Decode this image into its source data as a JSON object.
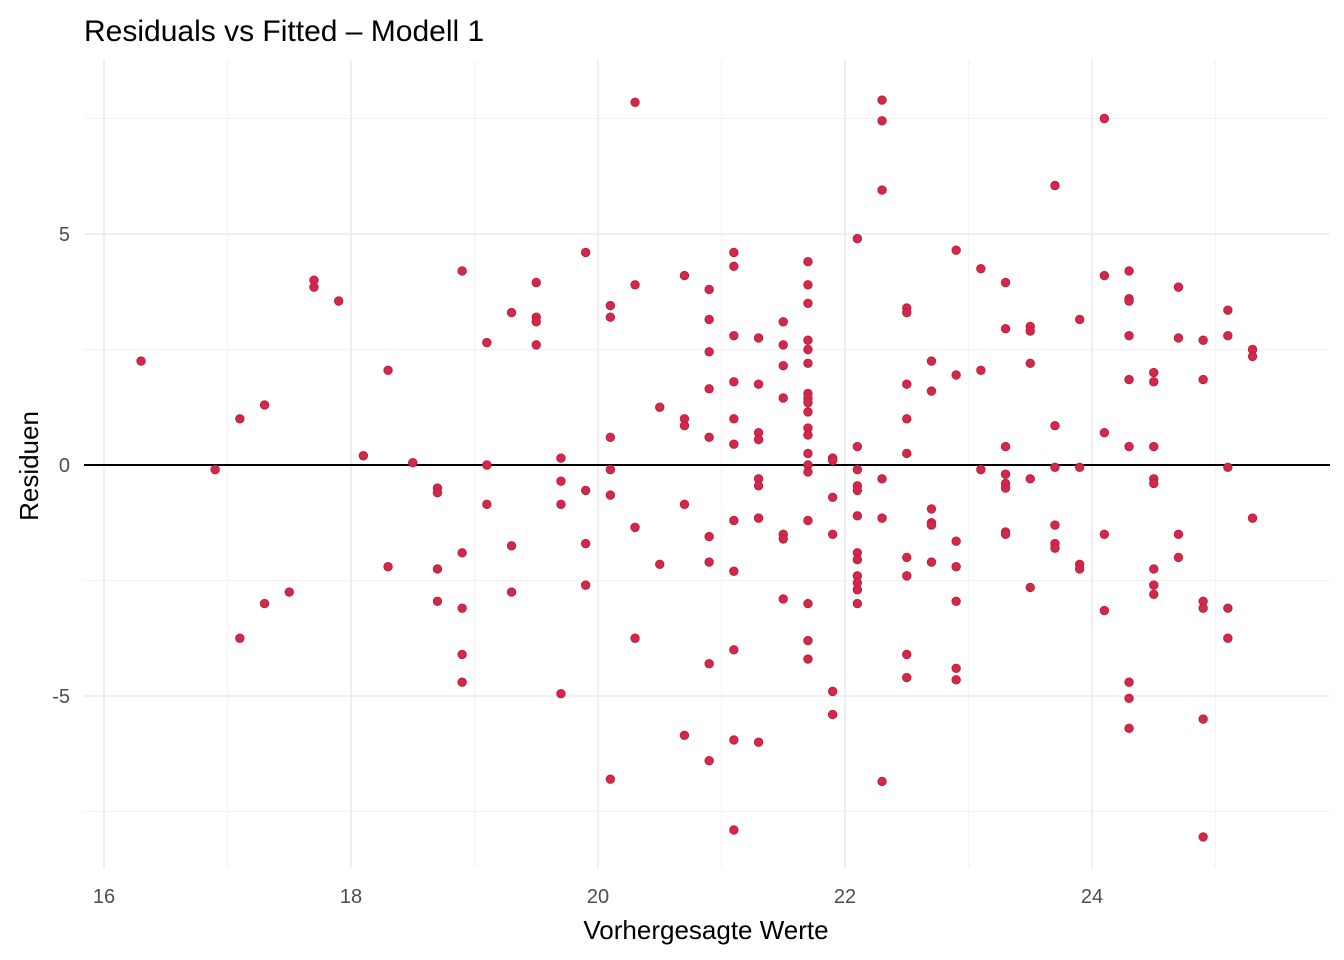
{
  "chart_data": {
    "type": "scatter",
    "title": "Residuals vs Fitted – Modell 1",
    "xlabel": "Vorhergesagte Werte",
    "ylabel": "Residuen",
    "xlim": [
      15.8,
      25.8
    ],
    "ylim": [
      -8.8,
      8.8
    ],
    "x_ticks": [
      16,
      18,
      20,
      22,
      24
    ],
    "x_tick_labels": [
      "16",
      "18",
      "20",
      "22",
      "24"
    ],
    "y_ticks": [
      -5,
      0,
      5
    ],
    "y_tick_labels": [
      "-5",
      "0",
      "5"
    ],
    "reference_line": {
      "y": 0,
      "color": "#000000"
    },
    "grid": true,
    "point_color": "#d0294b",
    "points": [
      [
        16.3,
        2.25
      ],
      [
        16.9,
        -0.1
      ],
      [
        17.1,
        1.0
      ],
      [
        17.1,
        -3.75
      ],
      [
        17.3,
        1.3
      ],
      [
        17.3,
        -3.0
      ],
      [
        17.5,
        -2.75
      ],
      [
        17.7,
        4.0
      ],
      [
        17.7,
        3.85
      ],
      [
        17.9,
        3.55
      ],
      [
        18.1,
        0.2
      ],
      [
        18.3,
        2.05
      ],
      [
        18.3,
        -2.2
      ],
      [
        18.5,
        0.05
      ],
      [
        18.7,
        -0.5
      ],
      [
        18.7,
        -0.6
      ],
      [
        18.7,
        -2.25
      ],
      [
        18.7,
        -2.95
      ],
      [
        18.9,
        4.2
      ],
      [
        18.9,
        -1.9
      ],
      [
        18.9,
        -3.1
      ],
      [
        18.9,
        -4.1
      ],
      [
        18.9,
        -4.7
      ],
      [
        19.1,
        2.65
      ],
      [
        19.1,
        0.0
      ],
      [
        19.1,
        -0.85
      ],
      [
        19.3,
        3.3
      ],
      [
        19.3,
        -1.75
      ],
      [
        19.3,
        -2.75
      ],
      [
        19.5,
        3.95
      ],
      [
        19.5,
        3.2
      ],
      [
        19.5,
        3.1
      ],
      [
        19.5,
        2.6
      ],
      [
        19.7,
        0.15
      ],
      [
        19.7,
        -0.35
      ],
      [
        19.7,
        -0.85
      ],
      [
        19.7,
        -4.95
      ],
      [
        19.9,
        4.6
      ],
      [
        19.9,
        -0.55
      ],
      [
        19.9,
        -1.7
      ],
      [
        19.9,
        -2.6
      ],
      [
        20.1,
        3.45
      ],
      [
        20.1,
        3.2
      ],
      [
        20.1,
        0.6
      ],
      [
        20.1,
        -0.1
      ],
      [
        20.1,
        -0.65
      ],
      [
        20.1,
        -6.8
      ],
      [
        20.3,
        7.85
      ],
      [
        20.3,
        3.9
      ],
      [
        20.3,
        -1.35
      ],
      [
        20.3,
        -3.75
      ],
      [
        20.5,
        1.25
      ],
      [
        20.5,
        -2.15
      ],
      [
        20.7,
        4.1
      ],
      [
        20.7,
        1.0
      ],
      [
        20.7,
        0.85
      ],
      [
        20.7,
        -0.85
      ],
      [
        20.7,
        -5.85
      ],
      [
        20.9,
        3.8
      ],
      [
        20.9,
        3.15
      ],
      [
        20.9,
        2.45
      ],
      [
        20.9,
        1.65
      ],
      [
        20.9,
        0.6
      ],
      [
        20.9,
        -1.55
      ],
      [
        20.9,
        -2.1
      ],
      [
        20.9,
        -4.3
      ],
      [
        20.9,
        -6.4
      ],
      [
        21.1,
        4.6
      ],
      [
        21.1,
        4.3
      ],
      [
        21.1,
        2.8
      ],
      [
        21.1,
        1.8
      ],
      [
        21.1,
        1.0
      ],
      [
        21.1,
        0.45
      ],
      [
        21.1,
        -1.2
      ],
      [
        21.1,
        -2.3
      ],
      [
        21.1,
        -4.0
      ],
      [
        21.1,
        -5.95
      ],
      [
        21.1,
        -7.9
      ],
      [
        21.3,
        2.75
      ],
      [
        21.3,
        1.75
      ],
      [
        21.3,
        0.7
      ],
      [
        21.3,
        0.55
      ],
      [
        21.3,
        -0.3
      ],
      [
        21.3,
        -0.45
      ],
      [
        21.3,
        -1.15
      ],
      [
        21.3,
        -6.0
      ],
      [
        21.5,
        3.1
      ],
      [
        21.5,
        2.6
      ],
      [
        21.5,
        2.15
      ],
      [
        21.5,
        1.45
      ],
      [
        21.5,
        -1.5
      ],
      [
        21.5,
        -1.6
      ],
      [
        21.5,
        -2.9
      ],
      [
        21.7,
        4.4
      ],
      [
        21.7,
        3.9
      ],
      [
        21.7,
        3.5
      ],
      [
        21.7,
        2.7
      ],
      [
        21.7,
        2.5
      ],
      [
        21.7,
        2.2
      ],
      [
        21.7,
        1.55
      ],
      [
        21.7,
        1.45
      ],
      [
        21.7,
        1.35
      ],
      [
        21.7,
        1.15
      ],
      [
        21.7,
        0.8
      ],
      [
        21.7,
        0.65
      ],
      [
        21.7,
        0.25
      ],
      [
        21.7,
        0.0
      ],
      [
        21.7,
        -0.15
      ],
      [
        21.7,
        -1.2
      ],
      [
        21.7,
        -3.0
      ],
      [
        21.7,
        -3.8
      ],
      [
        21.7,
        -4.2
      ],
      [
        21.9,
        0.15
      ],
      [
        21.9,
        0.1
      ],
      [
        21.9,
        -0.7
      ],
      [
        21.9,
        -1.5
      ],
      [
        21.9,
        -4.9
      ],
      [
        21.9,
        -5.4
      ],
      [
        22.1,
        4.9
      ],
      [
        22.1,
        0.4
      ],
      [
        22.1,
        -0.1
      ],
      [
        22.1,
        -0.45
      ],
      [
        22.1,
        -0.55
      ],
      [
        22.1,
        -1.1
      ],
      [
        22.1,
        -1.9
      ],
      [
        22.1,
        -2.05
      ],
      [
        22.1,
        -2.4
      ],
      [
        22.1,
        -2.55
      ],
      [
        22.1,
        -2.7
      ],
      [
        22.1,
        -3.0
      ],
      [
        22.3,
        7.9
      ],
      [
        22.3,
        7.45
      ],
      [
        22.3,
        5.95
      ],
      [
        22.3,
        -0.3
      ],
      [
        22.3,
        -1.15
      ],
      [
        22.3,
        -6.85
      ],
      [
        22.5,
        3.4
      ],
      [
        22.5,
        3.3
      ],
      [
        22.5,
        1.75
      ],
      [
        22.5,
        1.0
      ],
      [
        22.5,
        0.25
      ],
      [
        22.5,
        -2.0
      ],
      [
        22.5,
        -2.4
      ],
      [
        22.5,
        -4.1
      ],
      [
        22.5,
        -4.6
      ],
      [
        22.7,
        2.25
      ],
      [
        22.7,
        1.6
      ],
      [
        22.7,
        -0.95
      ],
      [
        22.7,
        -1.25
      ],
      [
        22.7,
        -1.3
      ],
      [
        22.7,
        -2.1
      ],
      [
        22.9,
        4.65
      ],
      [
        22.9,
        1.95
      ],
      [
        22.9,
        -1.65
      ],
      [
        22.9,
        -2.2
      ],
      [
        22.9,
        -2.95
      ],
      [
        22.9,
        -4.4
      ],
      [
        22.9,
        -4.65
      ],
      [
        23.1,
        4.25
      ],
      [
        23.1,
        2.05
      ],
      [
        23.1,
        -0.1
      ],
      [
        23.3,
        3.95
      ],
      [
        23.3,
        2.95
      ],
      [
        23.3,
        0.4
      ],
      [
        23.3,
        -0.2
      ],
      [
        23.3,
        -0.4
      ],
      [
        23.3,
        -0.5
      ],
      [
        23.3,
        -1.45
      ],
      [
        23.3,
        -1.5
      ],
      [
        23.5,
        3.0
      ],
      [
        23.5,
        2.9
      ],
      [
        23.5,
        2.2
      ],
      [
        23.5,
        -0.3
      ],
      [
        23.5,
        -2.65
      ],
      [
        23.7,
        6.05
      ],
      [
        23.7,
        0.85
      ],
      [
        23.7,
        -0.05
      ],
      [
        23.7,
        -1.3
      ],
      [
        23.7,
        -1.7
      ],
      [
        23.7,
        -1.8
      ],
      [
        23.9,
        3.15
      ],
      [
        23.9,
        -0.05
      ],
      [
        23.9,
        -2.15
      ],
      [
        23.9,
        -2.25
      ],
      [
        24.1,
        7.5
      ],
      [
        24.1,
        4.1
      ],
      [
        24.1,
        0.7
      ],
      [
        24.1,
        -1.5
      ],
      [
        24.1,
        -3.15
      ],
      [
        24.3,
        4.2
      ],
      [
        24.3,
        3.6
      ],
      [
        24.3,
        3.55
      ],
      [
        24.3,
        2.8
      ],
      [
        24.3,
        1.85
      ],
      [
        24.3,
        0.4
      ],
      [
        24.3,
        -4.7
      ],
      [
        24.3,
        -5.05
      ],
      [
        24.3,
        -5.7
      ],
      [
        24.5,
        2.0
      ],
      [
        24.5,
        1.8
      ],
      [
        24.5,
        0.4
      ],
      [
        24.5,
        -0.3
      ],
      [
        24.5,
        -0.4
      ],
      [
        24.5,
        -2.25
      ],
      [
        24.5,
        -2.6
      ],
      [
        24.5,
        -2.8
      ],
      [
        24.7,
        3.85
      ],
      [
        24.7,
        2.75
      ],
      [
        24.7,
        -1.5
      ],
      [
        24.7,
        -2.0
      ],
      [
        24.9,
        2.7
      ],
      [
        24.9,
        1.85
      ],
      [
        24.9,
        -2.95
      ],
      [
        24.9,
        -3.1
      ],
      [
        24.9,
        -5.5
      ],
      [
        24.9,
        -8.05
      ],
      [
        25.1,
        3.35
      ],
      [
        25.1,
        2.8
      ],
      [
        25.1,
        -0.05
      ],
      [
        25.1,
        -3.1
      ],
      [
        25.1,
        -3.75
      ],
      [
        25.3,
        2.5
      ],
      [
        25.3,
        2.35
      ],
      [
        25.3,
        -1.15
      ]
    ]
  }
}
